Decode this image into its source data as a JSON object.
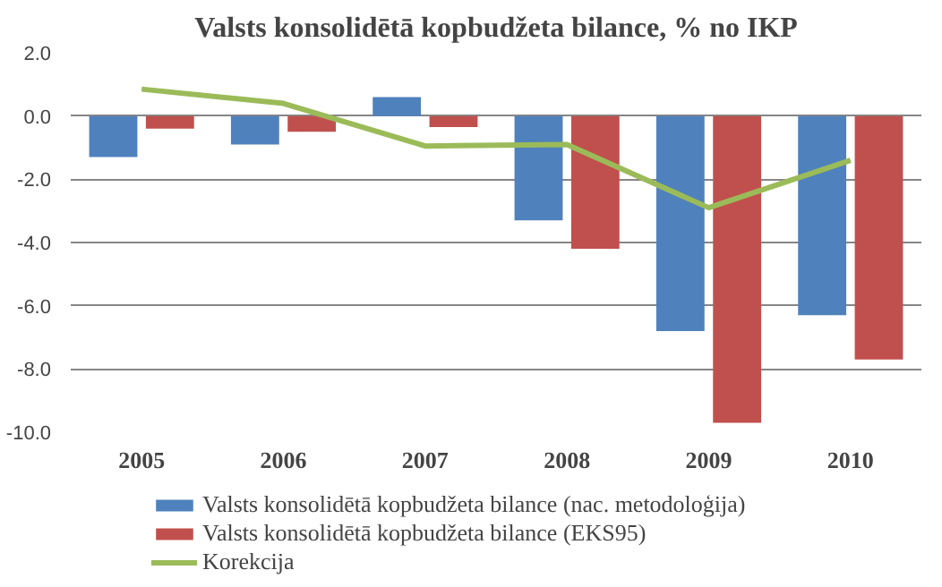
{
  "chart_data": {
    "type": "bar",
    "title": "Valsts konsolidētā kopbudžeta bilance, % no IKP",
    "categories": [
      "2005",
      "2006",
      "2007",
      "2008",
      "2009",
      "2010"
    ],
    "series": [
      {
        "name": "Valsts konsolidētā kopbudžeta bilance (nac. metodoloģija)",
        "color": "#4f81bd",
        "values": [
          -1.3,
          -0.9,
          0.6,
          -3.3,
          -6.8,
          -6.3
        ]
      },
      {
        "name": "Valsts konsolidētā kopbudžeta bilance (EKS95)",
        "color": "#c0504d",
        "values": [
          -0.4,
          -0.5,
          -0.35,
          -4.2,
          -9.7,
          -7.7
        ]
      },
      {
        "name": "Korekcija",
        "color": "#9bbb59",
        "type": "line",
        "values": [
          0.85,
          0.4,
          -0.95,
          -0.9,
          -2.9,
          -1.4
        ]
      }
    ],
    "ylim": [
      -10,
      2
    ],
    "yticks": [
      {
        "value": -10,
        "label": "-10.0"
      },
      {
        "value": -8,
        "label": "-8.0"
      },
      {
        "value": -6,
        "label": "-6.0"
      },
      {
        "value": -4,
        "label": "-4.0"
      },
      {
        "value": -2,
        "label": "-2.0"
      },
      {
        "value": 0,
        "label": "0.0"
      },
      {
        "value": 2,
        "label": "2.0"
      }
    ],
    "grid": "y",
    "legend": "bottom",
    "marker": "none"
  }
}
